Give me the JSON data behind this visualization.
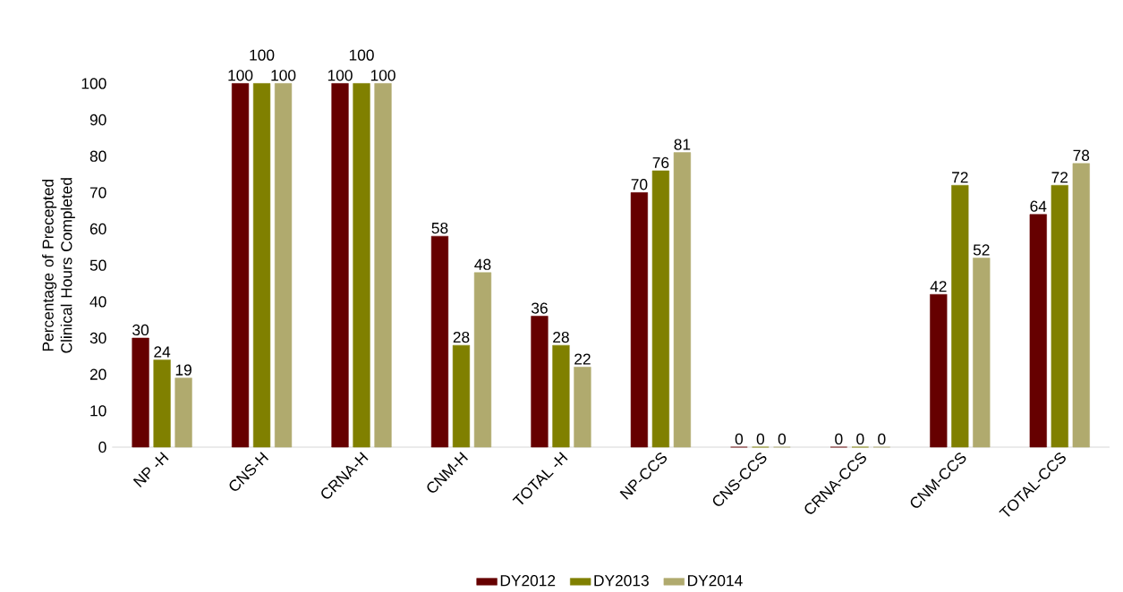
{
  "chart_data": {
    "type": "bar",
    "ylabel": "Percentage of Precepted Clinical Hours Completed",
    "categories": [
      "NP -H",
      "CNS-H",
      "CRNA-H",
      "CNM-H",
      "TOTAL -H",
      "NP-CCS",
      "CNS-CCS",
      "CRNA-CCS",
      "CNM-CCS",
      "TOTAL-CCS"
    ],
    "series": [
      {
        "name": "DY2012",
        "color": "#660000",
        "values": [
          30,
          100,
          100,
          58,
          36,
          70,
          0,
          0,
          42,
          64
        ]
      },
      {
        "name": "DY2013",
        "color": "#808000",
        "values": [
          24,
          100,
          100,
          28,
          28,
          76,
          0,
          0,
          72,
          72
        ]
      },
      {
        "name": "DY2014",
        "color": "#b0aa6e",
        "values": [
          19,
          100,
          100,
          48,
          22,
          81,
          0,
          0,
          52,
          78
        ]
      }
    ],
    "ylim": [
      0,
      100
    ],
    "yticks": [
      0,
      10,
      20,
      30,
      40,
      50,
      60,
      70,
      80,
      90,
      100
    ],
    "data_labels": true,
    "legend": "bottom",
    "grid": false
  }
}
